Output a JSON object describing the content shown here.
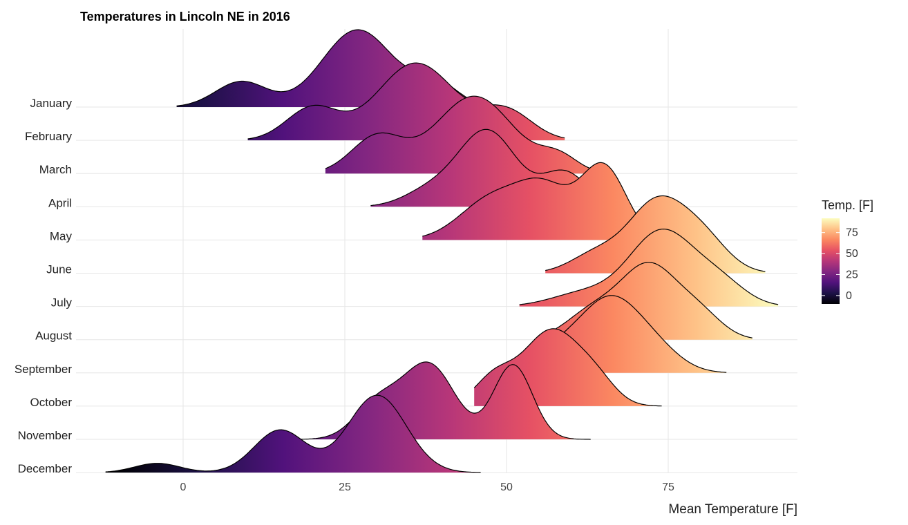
{
  "chart_data": {
    "type": "ridgeline",
    "title": "Temperatures in Lincoln NE in 2016",
    "xlabel": "Mean Temperature [F]",
    "ylabel": "",
    "xlim": [
      -14,
      95
    ],
    "x_ticks": [
      0,
      25,
      50,
      75
    ],
    "legend": {
      "title": "Temp. [F]",
      "ticks": [
        0,
        25,
        50,
        75
      ],
      "range": [
        -10,
        92
      ],
      "position": "right"
    },
    "colormap": [
      "#000004",
      "#1d1147",
      "#51127c",
      "#822681",
      "#b63679",
      "#e65164",
      "#fb8861",
      "#fec287",
      "#fcfdbf"
    ],
    "series": [
      {
        "name": "January",
        "range": [
          -1,
          49
        ],
        "peaks": [
          [
            9,
            4,
            0.33
          ],
          [
            27,
            5.5,
            1.0
          ],
          [
            39,
            3.5,
            0.3
          ]
        ]
      },
      {
        "name": "February",
        "range": [
          10,
          59
        ],
        "peaks": [
          [
            20,
            4,
            0.4
          ],
          [
            36,
            6,
            0.95
          ],
          [
            50,
            4,
            0.35
          ]
        ]
      },
      {
        "name": "March",
        "range": [
          22,
          63
        ],
        "peaks": [
          [
            30,
            4,
            0.45
          ],
          [
            45,
            6,
            0.95
          ],
          [
            58,
            3,
            0.2
          ]
        ]
      },
      {
        "name": "April",
        "range": [
          29,
          63
        ],
        "peaks": [
          [
            38,
            4,
            0.2
          ],
          [
            47,
            4.5,
            1.0
          ],
          [
            59,
            3.5,
            0.45
          ]
        ]
      },
      {
        "name": "May",
        "range": [
          37,
          70
        ],
        "peaks": [
          [
            48,
            5,
            0.55
          ],
          [
            56,
            4,
            0.6
          ],
          [
            65,
            3.5,
            0.95
          ]
        ]
      },
      {
        "name": "June",
        "range": [
          56,
          90
        ],
        "peaks": [
          [
            64,
            4,
            0.3
          ],
          [
            73,
            4.2,
            1.0
          ],
          [
            80,
            4,
            0.55
          ]
        ]
      },
      {
        "name": "July",
        "range": [
          52,
          92
        ],
        "peaks": [
          [
            62,
            5,
            0.18
          ],
          [
            74,
            5,
            1.0
          ],
          [
            83,
            4,
            0.3
          ]
        ]
      },
      {
        "name": "August",
        "range": [
          56,
          88
        ],
        "peaks": [
          [
            63,
            4,
            0.35
          ],
          [
            72,
            4.5,
            1.0
          ],
          [
            80,
            3.5,
            0.3
          ]
        ]
      },
      {
        "name": "September",
        "range": [
          52,
          84
        ],
        "peaks": [
          [
            58,
            4,
            0.3
          ],
          [
            66,
            4.5,
            1.0
          ],
          [
            73,
            4,
            0.3
          ]
        ]
      },
      {
        "name": "October",
        "range": [
          45,
          74
        ],
        "peaks": [
          [
            48,
            3,
            0.35
          ],
          [
            57,
            4.5,
            1.0
          ],
          [
            64,
            3,
            0.25
          ]
        ]
      },
      {
        "name": "November",
        "range": [
          18,
          63
        ],
        "peaks": [
          [
            30,
            3.5,
            0.45
          ],
          [
            38,
            4,
            0.95
          ],
          [
            51,
            3,
            0.95
          ]
        ]
      },
      {
        "name": "December",
        "range": [
          -12,
          46
        ],
        "peaks": [
          [
            -4,
            3.5,
            0.12
          ],
          [
            15,
            4,
            0.55
          ],
          [
            30,
            4.5,
            1.0
          ]
        ]
      }
    ]
  }
}
